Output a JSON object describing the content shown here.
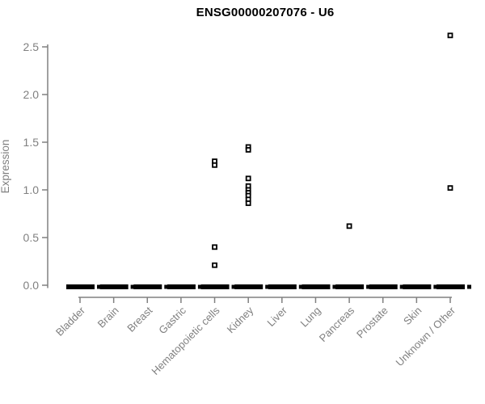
{
  "chart_data": {
    "type": "scatter",
    "subtype": "strip-plot",
    "title": "ENSG00000207076 - U6",
    "xlabel": "",
    "ylabel": "Expression",
    "ylim": [
      0,
      2.5
    ],
    "yticks": [
      0.0,
      0.5,
      1.0,
      1.5,
      2.0,
      2.5
    ],
    "ytick_labels": [
      "0.0",
      "0.5",
      "1.0",
      "1.5",
      "2.0",
      "2.5"
    ],
    "grid": false,
    "legend_position": "none",
    "marker": "open-square",
    "categories": [
      "Bladder",
      "Brain",
      "Breast",
      "Gastric",
      "Hematopoietic cells",
      "Kidney",
      "Liver",
      "Lung",
      "Pancreas",
      "Prostate",
      "Skin",
      "Unknown / Other"
    ],
    "series": [
      {
        "name": "Bladder",
        "values": [],
        "zero_cluster": true
      },
      {
        "name": "Brain",
        "values": [],
        "zero_cluster": true
      },
      {
        "name": "Breast",
        "values": [],
        "zero_cluster": true
      },
      {
        "name": "Gastric",
        "values": [],
        "zero_cluster": true
      },
      {
        "name": "Hematopoietic cells",
        "values": [
          1.3,
          1.26,
          0.4,
          0.21
        ],
        "zero_cluster": true
      },
      {
        "name": "Kidney",
        "values": [
          1.45,
          1.42,
          1.12,
          1.04,
          1.0,
          0.97,
          0.94,
          0.9,
          0.86
        ],
        "zero_cluster": true
      },
      {
        "name": "Liver",
        "values": [],
        "zero_cluster": true
      },
      {
        "name": "Lung",
        "values": [],
        "zero_cluster": true
      },
      {
        "name": "Pancreas",
        "values": [
          0.62
        ],
        "zero_cluster": true
      },
      {
        "name": "Prostate",
        "values": [],
        "zero_cluster": true
      },
      {
        "name": "Skin",
        "values": [],
        "zero_cluster": true
      },
      {
        "name": "Unknown / Other",
        "values": [
          2.62,
          1.02
        ],
        "zero_cluster": true
      }
    ],
    "colors": {
      "point": "#000000",
      "point_fill": "#ffffff",
      "zero_bar": "#000000",
      "axis": "#808080",
      "tick_label": "#808080",
      "axis_label": "#808080",
      "title": "#000000",
      "background": "#ffffff"
    }
  }
}
